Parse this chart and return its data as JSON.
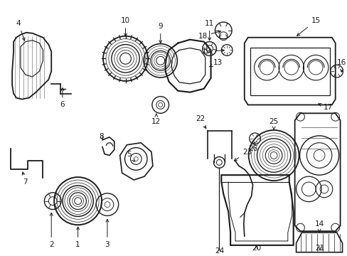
{
  "bg_color": "#ffffff",
  "line_color": "#1a1a1a",
  "fig_width": 4.89,
  "fig_height": 3.6,
  "dpi": 100,
  "label_fontsize": 7.5
}
